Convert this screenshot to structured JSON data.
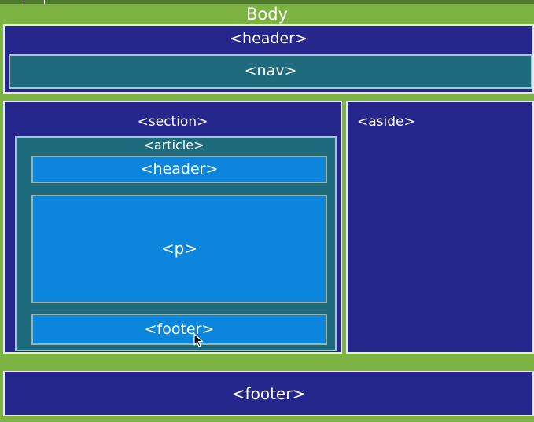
{
  "diagram": {
    "body_label": "Body",
    "header_label": "<header>",
    "nav_label": "<nav>",
    "section_label": "<section>",
    "article_label": "<article>",
    "article_header_label": "<header>",
    "article_p_label": "<p>",
    "article_footer_label": "<footer>",
    "aside_label": "<aside>",
    "footer_label": "<footer>"
  },
  "colors": {
    "background": "#7cb342",
    "block": "#25278c",
    "article": "#1d6b7c",
    "inner": "#0b86dc",
    "border": "#e8ebe4"
  },
  "cursor_icon": "mouse-pointer-icon"
}
